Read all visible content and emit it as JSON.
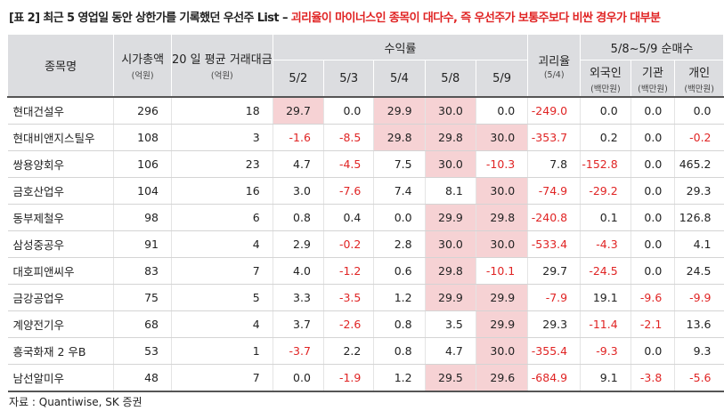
{
  "title": {
    "main": "[표 2] 최근 5 영업일 동안 상한가를 기록했던 우선주 List – ",
    "highlight": "괴리율이 마이너스인 종목이 대다수, 즉 우선주가 보통주보다 비싼 경우가 대부분"
  },
  "headers": {
    "name": "종목명",
    "mktcap": "시가총액",
    "mktcap_unit": "(억원)",
    "avgvol": "20 일 평균 거래대금",
    "avgvol_unit": "(억원)",
    "returns": "수익률",
    "dates": [
      "5/2",
      "5/3",
      "5/4",
      "5/8",
      "5/9"
    ],
    "gap": "괴리율",
    "gap_unit": "(5/4)",
    "netbuy": "5/8~5/9 순매수",
    "foreign": "외국인",
    "inst": "기관",
    "indiv": "개인",
    "netbuy_unit": "(백만원)"
  },
  "rows": [
    {
      "name": "현대건설우",
      "mktcap": "296",
      "avgvol": "18",
      "r": [
        "29.7",
        "0.0",
        "29.9",
        "30.0",
        "0.0"
      ],
      "gap": "-249.0",
      "foreign": "0.0",
      "inst": "0.0",
      "indiv": "0.0",
      "hl": [
        true,
        false,
        true,
        true,
        false
      ]
    },
    {
      "name": "현대비앤지스틸우",
      "mktcap": "108",
      "avgvol": "3",
      "r": [
        "-1.6",
        "-8.5",
        "29.8",
        "29.8",
        "30.0"
      ],
      "gap": "-353.7",
      "foreign": "0.2",
      "inst": "0.0",
      "indiv": "-0.2",
      "hl": [
        false,
        false,
        true,
        true,
        true
      ]
    },
    {
      "name": "쌍용양회우",
      "mktcap": "106",
      "avgvol": "23",
      "r": [
        "4.7",
        "-4.5",
        "7.5",
        "30.0",
        "-10.3"
      ],
      "gap": "7.8",
      "foreign": "-152.8",
      "inst": "0.0",
      "indiv": "465.2",
      "hl": [
        false,
        false,
        false,
        true,
        false
      ]
    },
    {
      "name": "금호산업우",
      "mktcap": "104",
      "avgvol": "16",
      "r": [
        "3.0",
        "-7.6",
        "7.4",
        "8.1",
        "30.0"
      ],
      "gap": "-74.9",
      "foreign": "-29.2",
      "inst": "0.0",
      "indiv": "29.3",
      "hl": [
        false,
        false,
        false,
        false,
        true
      ]
    },
    {
      "name": "동부제철우",
      "mktcap": "98",
      "avgvol": "6",
      "r": [
        "0.8",
        "0.4",
        "0.0",
        "29.9",
        "29.8"
      ],
      "gap": "-240.8",
      "foreign": "0.1",
      "inst": "0.0",
      "indiv": "126.8",
      "hl": [
        false,
        false,
        false,
        true,
        true
      ]
    },
    {
      "name": "삼성중공우",
      "mktcap": "91",
      "avgvol": "4",
      "r": [
        "2.9",
        "-0.2",
        "2.8",
        "30.0",
        "30.0"
      ],
      "gap": "-533.4",
      "foreign": "-4.3",
      "inst": "0.0",
      "indiv": "4.1",
      "hl": [
        false,
        false,
        false,
        true,
        true
      ]
    },
    {
      "name": "대호피앤씨우",
      "mktcap": "83",
      "avgvol": "7",
      "r": [
        "4.0",
        "-1.2",
        "0.6",
        "29.8",
        "-10.1"
      ],
      "gap": "29.7",
      "foreign": "-24.5",
      "inst": "0.0",
      "indiv": "24.5",
      "hl": [
        false,
        false,
        false,
        true,
        false
      ]
    },
    {
      "name": "금강공업우",
      "mktcap": "75",
      "avgvol": "5",
      "r": [
        "3.3",
        "-3.5",
        "1.2",
        "29.9",
        "29.9"
      ],
      "gap": "-7.9",
      "foreign": "19.1",
      "inst": "-9.6",
      "indiv": "-9.9",
      "hl": [
        false,
        false,
        false,
        true,
        true
      ]
    },
    {
      "name": "계양전기우",
      "mktcap": "68",
      "avgvol": "4",
      "r": [
        "3.7",
        "-2.6",
        "0.8",
        "3.5",
        "29.9"
      ],
      "gap": "29.3",
      "foreign": "-11.4",
      "inst": "-2.1",
      "indiv": "13.6",
      "hl": [
        false,
        false,
        false,
        false,
        true
      ]
    },
    {
      "name": "흥국화재 2 우B",
      "mktcap": "53",
      "avgvol": "1",
      "r": [
        "-3.7",
        "2.2",
        "0.8",
        "4.7",
        "30.0"
      ],
      "gap": "-355.4",
      "foreign": "-9.3",
      "inst": "0.0",
      "indiv": "9.3",
      "hl": [
        false,
        false,
        false,
        false,
        true
      ]
    },
    {
      "name": "남선알미우",
      "mktcap": "48",
      "avgvol": "7",
      "r": [
        "0.0",
        "-1.9",
        "1.2",
        "29.5",
        "29.6"
      ],
      "gap": "-684.9",
      "foreign": "9.1",
      "inst": "-3.8",
      "indiv": "-5.6",
      "hl": [
        false,
        false,
        false,
        true,
        true
      ]
    }
  ],
  "colors": {
    "highlight_bg": "#f6d2d4",
    "negative_text": "#e02424",
    "header_bg": "#dcdde0"
  },
  "source": "자료 : Quantiwise, SK 증권"
}
